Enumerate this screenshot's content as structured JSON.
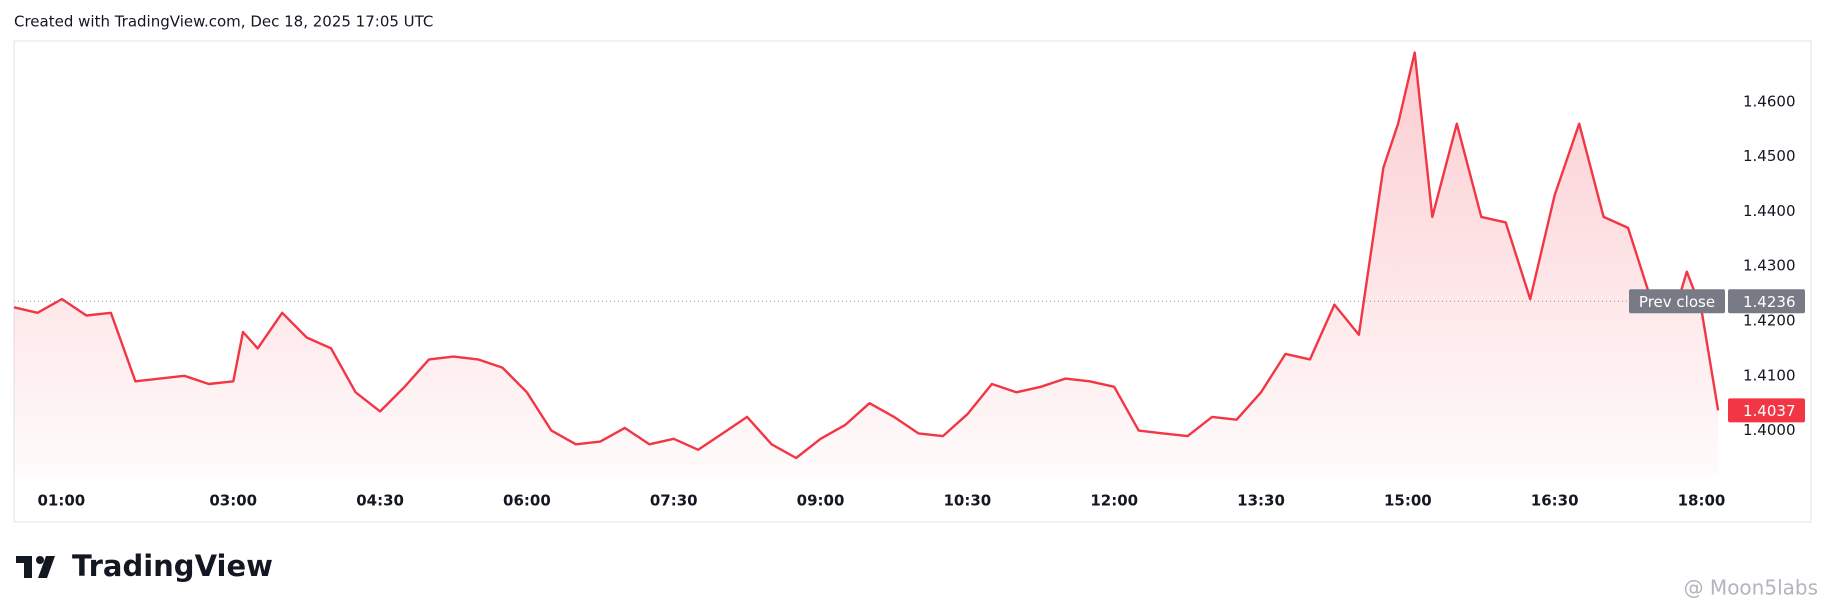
{
  "header": "Created with TradingView.com, Dec 18, 2025 17:05 UTC",
  "logo": "TradingView",
  "watermark": "@ Moon5labs",
  "chart_data": {
    "type": "area",
    "color": "#f23645",
    "x": [
      0.76,
      1.0,
      1.25,
      1.5,
      1.75,
      2.0,
      2.25,
      2.5,
      2.75,
      3.0,
      3.1,
      3.25,
      3.5,
      3.75,
      4.0,
      4.25,
      4.5,
      4.75,
      5.0,
      5.25,
      5.5,
      5.75,
      6.0,
      6.25,
      6.5,
      6.75,
      7.0,
      7.25,
      7.5,
      7.75,
      8.0,
      8.25,
      8.5,
      8.75,
      9.0,
      9.25,
      9.5,
      9.75,
      10.0,
      10.25,
      10.5,
      10.75,
      11.0,
      11.25,
      11.5,
      11.75,
      12.0,
      12.25,
      12.5,
      12.75,
      13.0,
      13.25,
      13.5,
      13.75,
      14.0,
      14.25,
      14.5,
      14.75,
      14.9,
      15.07,
      15.25,
      15.5,
      15.75,
      16.0,
      16.25,
      16.5,
      16.75,
      17.0,
      17.25,
      17.5,
      17.75,
      17.85,
      18.0,
      18.17
    ],
    "series": [
      {
        "values": [
          1.4225,
          1.4215,
          1.424,
          1.421,
          1.4215,
          1.409,
          1.4095,
          1.41,
          1.4085,
          1.409,
          1.418,
          1.415,
          1.4215,
          1.417,
          1.415,
          1.407,
          1.4035,
          1.408,
          1.413,
          1.4135,
          1.413,
          1.4115,
          1.407,
          1.4,
          1.3975,
          1.398,
          1.4005,
          1.3975,
          1.3985,
          1.3965,
          1.3995,
          1.4025,
          1.3975,
          1.395,
          1.3985,
          1.401,
          1.405,
          1.4025,
          1.3995,
          1.399,
          1.403,
          1.4085,
          1.407,
          1.408,
          1.4095,
          1.409,
          1.408,
          1.4,
          1.3995,
          1.399,
          1.4025,
          1.402,
          1.407,
          1.414,
          1.413,
          1.423,
          1.4175,
          1.448,
          1.456,
          1.469,
          1.439,
          1.456,
          1.439,
          1.438,
          1.424,
          1.443,
          1.456,
          1.439,
          1.437,
          1.423,
          1.423,
          1.429,
          1.422,
          1.4037
        ]
      }
    ],
    "xlim": [
      0.76,
      18.24
    ],
    "ylim": [
      1.3919,
      1.4711
    ],
    "xticks": [
      {
        "value": 1,
        "label": "01:00"
      },
      {
        "value": 3,
        "label": "03:00"
      },
      {
        "value": 4.5,
        "label": "04:30"
      },
      {
        "value": 6,
        "label": "06:00"
      },
      {
        "value": 7.5,
        "label": "07:30"
      },
      {
        "value": 9,
        "label": "09:00"
      },
      {
        "value": 10.5,
        "label": "10:30"
      },
      {
        "value": 12,
        "label": "12:00"
      },
      {
        "value": 13.5,
        "label": "13:30"
      },
      {
        "value": 15,
        "label": "15:00"
      },
      {
        "value": 16.5,
        "label": "16:30"
      },
      {
        "value": 18,
        "label": "18:00"
      }
    ],
    "yticks": [
      {
        "value": 1.4,
        "label": "1.4000"
      },
      {
        "value": 1.41,
        "label": "1.4100"
      },
      {
        "value": 1.42,
        "label": "1.4200"
      },
      {
        "value": 1.43,
        "label": "1.4300"
      },
      {
        "value": 1.44,
        "label": "1.4400"
      },
      {
        "value": 1.45,
        "label": "1.4500"
      },
      {
        "value": 1.46,
        "label": "1.4600"
      }
    ],
    "prev_close_label": "Prev close",
    "prev_close": 1.4236
  }
}
